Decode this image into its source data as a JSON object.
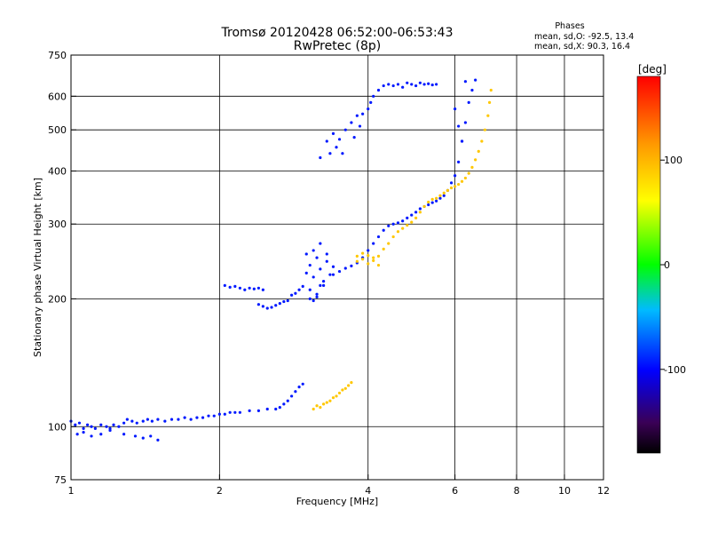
{
  "chart_data": {
    "type": "scatter",
    "title": "Tromsø 20120428 06:52:00-06:53:43",
    "subtitle": "RwPretec (8p)",
    "xlabel": "Frequency [MHz]",
    "ylabel": "Stationary phase Virtual Height [km]",
    "x_scale": "log",
    "y_scale": "log",
    "xlim": [
      1,
      12
    ],
    "ylim": [
      75,
      750
    ],
    "grid": true,
    "x_ticks": [
      "1",
      "2",
      "4",
      "6",
      "8",
      "10",
      "12"
    ],
    "x_tick_values": [
      1,
      2,
      4,
      6,
      8,
      10,
      12
    ],
    "y_ticks": [
      "750",
      "600",
      "500",
      "400",
      "300",
      "200",
      "100",
      "75"
    ],
    "y_tick_values": [
      750,
      600,
      500,
      400,
      300,
      200,
      100,
      75
    ],
    "phases_box": {
      "heading": "Phases",
      "line_o": "mean, sd,O: -92.5, 13.4",
      "line_x": "mean, sd,X:  90.3, 16.4"
    },
    "colorbar": {
      "label": "[deg]",
      "min": -180,
      "max": 180,
      "ticks": [
        "100",
        "0",
        "-100"
      ],
      "tick_values": [
        100,
        0,
        -100
      ]
    },
    "series": [
      {
        "phase_deg": -92.5,
        "points": [
          [
            1.0,
            103
          ],
          [
            1.02,
            101
          ],
          [
            1.04,
            102
          ],
          [
            1.06,
            99
          ],
          [
            1.08,
            101
          ],
          [
            1.1,
            100
          ],
          [
            1.12,
            99
          ],
          [
            1.15,
            101
          ],
          [
            1.18,
            100
          ],
          [
            1.2,
            99
          ],
          [
            1.22,
            101
          ],
          [
            1.25,
            100
          ],
          [
            1.28,
            102
          ],
          [
            1.3,
            104
          ],
          [
            1.33,
            103
          ],
          [
            1.36,
            102
          ],
          [
            1.4,
            103
          ],
          [
            1.43,
            104
          ],
          [
            1.46,
            103
          ],
          [
            1.5,
            104
          ],
          [
            1.55,
            103
          ],
          [
            1.6,
            104
          ],
          [
            1.65,
            104
          ],
          [
            1.7,
            105
          ],
          [
            1.75,
            104
          ],
          [
            1.8,
            105
          ],
          [
            1.85,
            105
          ],
          [
            1.9,
            106
          ],
          [
            1.95,
            106
          ],
          [
            2.0,
            107
          ],
          [
            2.05,
            107
          ],
          [
            2.1,
            108
          ],
          [
            2.15,
            108
          ],
          [
            2.2,
            108
          ],
          [
            2.3,
            109
          ],
          [
            2.4,
            109
          ],
          [
            2.5,
            110
          ],
          [
            2.6,
            110
          ],
          [
            2.65,
            111
          ],
          [
            2.7,
            113
          ],
          [
            2.75,
            115
          ],
          [
            2.8,
            118
          ],
          [
            2.85,
            121
          ],
          [
            2.9,
            124
          ],
          [
            2.95,
            126
          ],
          [
            1.03,
            96
          ],
          [
            1.06,
            97
          ],
          [
            1.1,
            95
          ],
          [
            1.15,
            96
          ],
          [
            1.2,
            98
          ],
          [
            1.28,
            96
          ],
          [
            1.35,
            95
          ],
          [
            1.4,
            94
          ],
          [
            1.45,
            95
          ],
          [
            1.5,
            93
          ],
          [
            2.05,
            215
          ],
          [
            2.1,
            213
          ],
          [
            2.15,
            214
          ],
          [
            2.2,
            212
          ],
          [
            2.25,
            210
          ],
          [
            2.3,
            212
          ],
          [
            2.35,
            211
          ],
          [
            2.4,
            212
          ],
          [
            2.45,
            210
          ],
          [
            2.4,
            194
          ],
          [
            2.45,
            192
          ],
          [
            2.5,
            190
          ],
          [
            2.55,
            191
          ],
          [
            2.6,
            193
          ],
          [
            2.65,
            195
          ],
          [
            2.7,
            197
          ],
          [
            2.75,
            198
          ],
          [
            2.8,
            204
          ],
          [
            2.85,
            206
          ],
          [
            2.9,
            210
          ],
          [
            2.95,
            214
          ],
          [
            3.0,
            230
          ],
          [
            3.05,
            240
          ],
          [
            3.1,
            225
          ],
          [
            3.15,
            250
          ],
          [
            3.2,
            235
          ],
          [
            3.25,
            220
          ],
          [
            3.3,
            245
          ],
          [
            3.35,
            228
          ],
          [
            3.4,
            238
          ],
          [
            3.05,
            210
          ],
          [
            3.1,
            260
          ],
          [
            3.15,
            205
          ],
          [
            3.2,
            270
          ],
          [
            3.25,
            215
          ],
          [
            3.3,
            255
          ],
          [
            3.0,
            255
          ],
          [
            3.05,
            200
          ],
          [
            3.1,
            198
          ],
          [
            3.15,
            202
          ],
          [
            3.2,
            215
          ],
          [
            3.4,
            228
          ],
          [
            3.5,
            232
          ],
          [
            3.6,
            236
          ],
          [
            3.7,
            239
          ],
          [
            3.8,
            243
          ],
          [
            3.9,
            250
          ],
          [
            4.0,
            260
          ],
          [
            4.1,
            270
          ],
          [
            4.2,
            280
          ],
          [
            4.3,
            290
          ],
          [
            4.4,
            297
          ],
          [
            4.5,
            300
          ],
          [
            4.6,
            302
          ],
          [
            4.7,
            305
          ],
          [
            4.8,
            310
          ],
          [
            4.9,
            315
          ],
          [
            5.0,
            320
          ],
          [
            5.1,
            326
          ],
          [
            5.2,
            330
          ],
          [
            5.3,
            333
          ],
          [
            5.4,
            337
          ],
          [
            5.5,
            340
          ],
          [
            5.6,
            345
          ],
          [
            5.7,
            350
          ],
          [
            5.8,
            360
          ],
          [
            5.9,
            375
          ],
          [
            6.0,
            390
          ],
          [
            6.1,
            420
          ],
          [
            6.2,
            470
          ],
          [
            6.3,
            520
          ],
          [
            6.4,
            580
          ],
          [
            6.5,
            620
          ],
          [
            3.2,
            430
          ],
          [
            3.3,
            470
          ],
          [
            3.35,
            440
          ],
          [
            3.4,
            490
          ],
          [
            3.45,
            455
          ],
          [
            3.5,
            475
          ],
          [
            3.55,
            440
          ],
          [
            3.6,
            500
          ],
          [
            3.7,
            520
          ],
          [
            3.75,
            480
          ],
          [
            3.8,
            540
          ],
          [
            3.85,
            510
          ],
          [
            3.9,
            545
          ],
          [
            4.0,
            560
          ],
          [
            4.05,
            580
          ],
          [
            4.1,
            600
          ],
          [
            4.2,
            620
          ],
          [
            4.3,
            635
          ],
          [
            4.4,
            640
          ],
          [
            4.5,
            635
          ],
          [
            4.6,
            640
          ],
          [
            4.7,
            630
          ],
          [
            4.8,
            645
          ],
          [
            4.9,
            640
          ],
          [
            5.0,
            635
          ],
          [
            5.1,
            645
          ],
          [
            5.2,
            640
          ],
          [
            5.3,
            642
          ],
          [
            5.4,
            638
          ],
          [
            5.5,
            640
          ],
          [
            6.3,
            650
          ],
          [
            6.6,
            655
          ],
          [
            6.0,
            560
          ],
          [
            6.1,
            510
          ],
          [
            6.2,
            470
          ]
        ]
      },
      {
        "phase_deg": 90.3,
        "points": [
          [
            3.1,
            110
          ],
          [
            3.15,
            112
          ],
          [
            3.2,
            111
          ],
          [
            3.25,
            113
          ],
          [
            3.3,
            114
          ],
          [
            3.35,
            115
          ],
          [
            3.4,
            117
          ],
          [
            3.45,
            118
          ],
          [
            3.5,
            120
          ],
          [
            3.55,
            122
          ],
          [
            3.6,
            123
          ],
          [
            3.65,
            125
          ],
          [
            3.7,
            127
          ],
          [
            3.8,
            252
          ],
          [
            3.9,
            256
          ],
          [
            4.0,
            253
          ],
          [
            4.1,
            250
          ],
          [
            4.2,
            252
          ],
          [
            4.3,
            262
          ],
          [
            4.4,
            270
          ],
          [
            4.5,
            280
          ],
          [
            4.6,
            288
          ],
          [
            4.7,
            293
          ],
          [
            4.8,
            298
          ],
          [
            4.9,
            303
          ],
          [
            5.0,
            310
          ],
          [
            5.1,
            320
          ],
          [
            5.2,
            330
          ],
          [
            5.3,
            338
          ],
          [
            5.4,
            343
          ],
          [
            5.5,
            345
          ],
          [
            5.6,
            350
          ],
          [
            5.7,
            355
          ],
          [
            5.8,
            360
          ],
          [
            5.9,
            365
          ],
          [
            6.0,
            368
          ],
          [
            6.1,
            372
          ],
          [
            6.2,
            378
          ],
          [
            6.3,
            385
          ],
          [
            6.4,
            395
          ],
          [
            6.5,
            408
          ],
          [
            6.6,
            425
          ],
          [
            6.7,
            445
          ],
          [
            6.8,
            470
          ],
          [
            6.9,
            500
          ],
          [
            7.0,
            540
          ],
          [
            7.05,
            580
          ],
          [
            7.1,
            620
          ],
          [
            3.8,
            245
          ],
          [
            3.9,
            248
          ],
          [
            4.0,
            242
          ],
          [
            4.1,
            246
          ],
          [
            4.2,
            240
          ]
        ]
      }
    ]
  }
}
